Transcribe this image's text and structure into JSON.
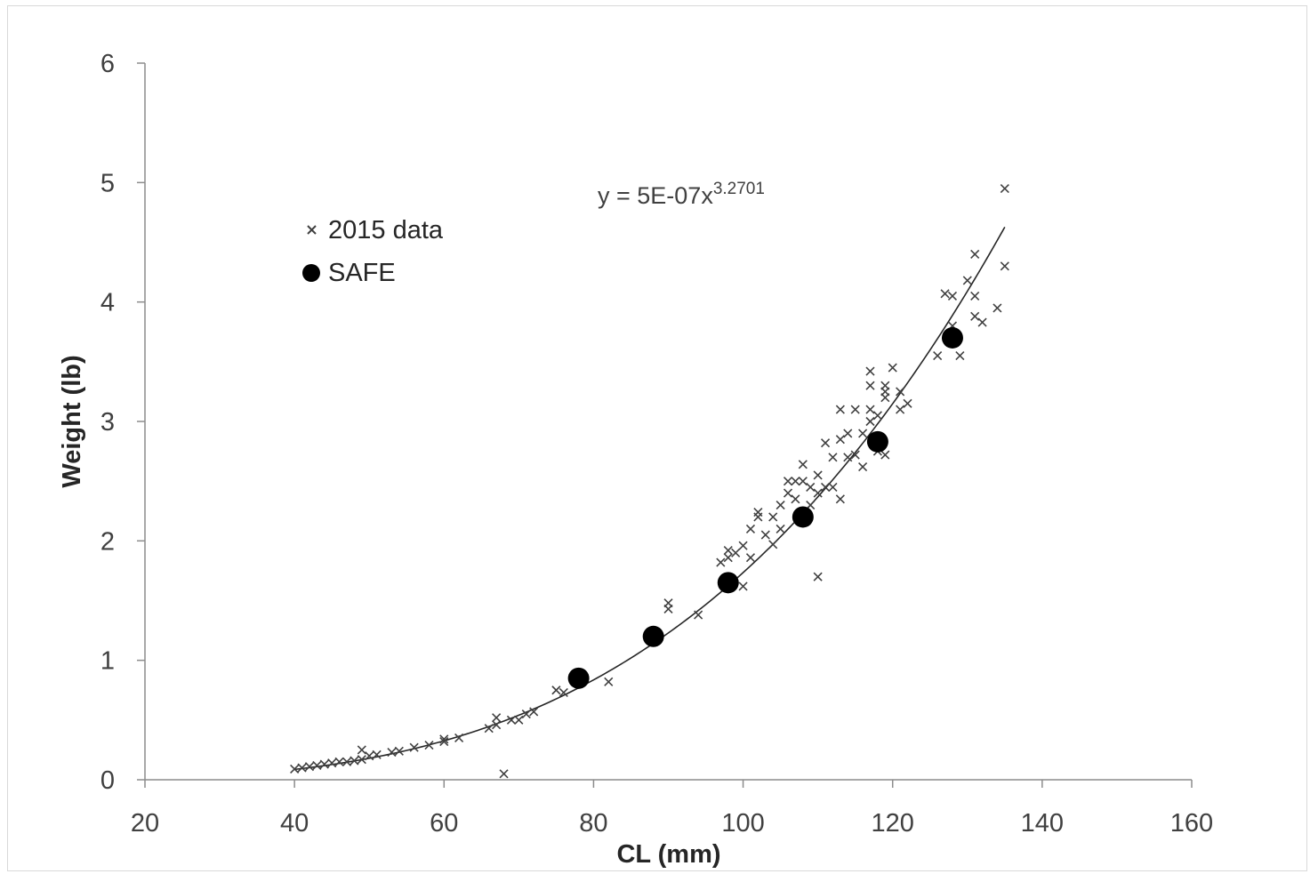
{
  "chart_data": {
    "type": "scatter",
    "xlabel": "CL (mm)",
    "ylabel": "Weight (lb)",
    "xlim": [
      20,
      160
    ],
    "ylim": [
      0,
      6
    ],
    "x_ticks": [
      "20",
      "40",
      "60",
      "80",
      "100",
      "120",
      "140",
      "160"
    ],
    "y_ticks": [
      "0",
      "1",
      "2",
      "3",
      "4",
      "5",
      "6"
    ],
    "grid": false,
    "legend_position": "top-left",
    "trendline": {
      "type": "power",
      "coefficient": 5e-07,
      "exponent": 3.2701,
      "equation_prefix": "y = 5E-07x",
      "equation_exponent": "3.2701"
    },
    "series": [
      {
        "name": "2015 data",
        "marker": "x",
        "color": "#404040",
        "points": [
          [
            40,
            0.09
          ],
          [
            41,
            0.1
          ],
          [
            42,
            0.11
          ],
          [
            43,
            0.12
          ],
          [
            44,
            0.13
          ],
          [
            45,
            0.14
          ],
          [
            46,
            0.15
          ],
          [
            47,
            0.15
          ],
          [
            48,
            0.16
          ],
          [
            49,
            0.17
          ],
          [
            49,
            0.25
          ],
          [
            50,
            0.2
          ],
          [
            51,
            0.21
          ],
          [
            53,
            0.23
          ],
          [
            54,
            0.24
          ],
          [
            56,
            0.27
          ],
          [
            58,
            0.29
          ],
          [
            60,
            0.32
          ],
          [
            60,
            0.34
          ],
          [
            62,
            0.35
          ],
          [
            66,
            0.43
          ],
          [
            67,
            0.46
          ],
          [
            67,
            0.52
          ],
          [
            68,
            0.05
          ],
          [
            69,
            0.5
          ],
          [
            70,
            0.5
          ],
          [
            71,
            0.55
          ],
          [
            72,
            0.57
          ],
          [
            75,
            0.75
          ],
          [
            76,
            0.73
          ],
          [
            82,
            0.82
          ],
          [
            90,
            1.43
          ],
          [
            90,
            1.48
          ],
          [
            94,
            1.38
          ],
          [
            97,
            1.82
          ],
          [
            98,
            1.86
          ],
          [
            98,
            1.92
          ],
          [
            99,
            1.9
          ],
          [
            100,
            1.62
          ],
          [
            100,
            1.96
          ],
          [
            101,
            1.86
          ],
          [
            101,
            2.1
          ],
          [
            102,
            2.2
          ],
          [
            102,
            2.24
          ],
          [
            103,
            2.05
          ],
          [
            104,
            1.97
          ],
          [
            104,
            2.2
          ],
          [
            105,
            2.1
          ],
          [
            105,
            2.3
          ],
          [
            106,
            2.4
          ],
          [
            106,
            2.5
          ],
          [
            107,
            2.35
          ],
          [
            107,
            2.5
          ],
          [
            108,
            2.64
          ],
          [
            108,
            2.5
          ],
          [
            109,
            2.45
          ],
          [
            109,
            2.3
          ],
          [
            110,
            1.7
          ],
          [
            110,
            2.4
          ],
          [
            110,
            2.55
          ],
          [
            111,
            2.45
          ],
          [
            111,
            2.82
          ],
          [
            112,
            2.7
          ],
          [
            112,
            2.45
          ],
          [
            113,
            2.85
          ],
          [
            113,
            3.1
          ],
          [
            113,
            2.35
          ],
          [
            114,
            2.7
          ],
          [
            114,
            2.9
          ],
          [
            115,
            3.1
          ],
          [
            115,
            2.72
          ],
          [
            116,
            2.62
          ],
          [
            116,
            2.9
          ],
          [
            117,
            3.42
          ],
          [
            117,
            3.1
          ],
          [
            117,
            3.0
          ],
          [
            117,
            3.3
          ],
          [
            118,
            2.82
          ],
          [
            118,
            3.05
          ],
          [
            118,
            2.75
          ],
          [
            119,
            3.3
          ],
          [
            119,
            3.25
          ],
          [
            119,
            2.72
          ],
          [
            119,
            3.2
          ],
          [
            120,
            3.45
          ],
          [
            121,
            3.25
          ],
          [
            121,
            3.1
          ],
          [
            122,
            3.15
          ],
          [
            126,
            3.55
          ],
          [
            127,
            4.07
          ],
          [
            128,
            4.05
          ],
          [
            128,
            3.8
          ],
          [
            129,
            3.55
          ],
          [
            130,
            4.18
          ],
          [
            131,
            4.4
          ],
          [
            131,
            4.05
          ],
          [
            131,
            3.88
          ],
          [
            132,
            3.83
          ],
          [
            134,
            3.95
          ],
          [
            135,
            4.95
          ],
          [
            135,
            4.3
          ]
        ]
      },
      {
        "name": "SAFE",
        "marker": "circle",
        "color": "#000000",
        "points": [
          [
            78,
            0.85
          ],
          [
            88,
            1.2
          ],
          [
            98,
            1.65
          ],
          [
            108,
            2.2
          ],
          [
            118,
            2.83
          ],
          [
            128,
            3.7
          ]
        ]
      }
    ]
  }
}
